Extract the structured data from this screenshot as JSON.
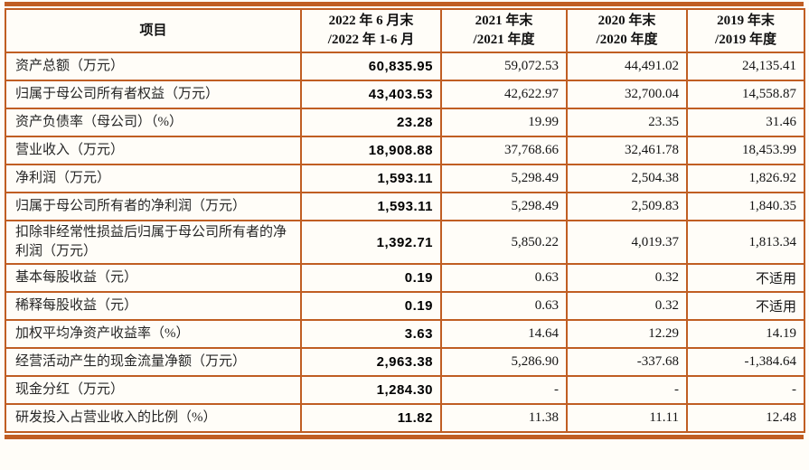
{
  "table": {
    "title_semantic": "key-financial-indicators-table",
    "colors": {
      "border": "#c05e23",
      "background": "#fffdf8",
      "text": "#141414"
    },
    "header": {
      "item_label": "项目",
      "columns": [
        "2022 年 6 月末\n/2022 年 1-6 月",
        "2021 年末\n/2021 年度",
        "2020 年末\n/2020 年度",
        "2019 年末\n/2019 年度"
      ]
    },
    "rows": [
      {
        "label": "资产总额（万元）",
        "values": [
          "60,835.95",
          "59,072.53",
          "44,491.02",
          "24,135.41"
        ]
      },
      {
        "label": "归属于母公司所有者权益（万元）",
        "values": [
          "43,403.53",
          "42,622.97",
          "32,700.04",
          "14,558.87"
        ]
      },
      {
        "label": "资产负债率（母公司）（%）",
        "values": [
          "23.28",
          "19.99",
          "23.35",
          "31.46"
        ]
      },
      {
        "label": "营业收入（万元）",
        "values": [
          "18,908.88",
          "37,768.66",
          "32,461.78",
          "18,453.99"
        ]
      },
      {
        "label": "净利润（万元）",
        "values": [
          "1,593.11",
          "5,298.49",
          "2,504.38",
          "1,826.92"
        ]
      },
      {
        "label": "归属于母公司所有者的净利润（万元）",
        "values": [
          "1,593.11",
          "5,298.49",
          "2,509.83",
          "1,840.35"
        ]
      },
      {
        "label": "扣除非经常性损益后归属于母公司所有者的净利润（万元）",
        "values": [
          "1,392.71",
          "5,850.22",
          "4,019.37",
          "1,813.34"
        ]
      },
      {
        "label": "基本每股收益（元）",
        "values": [
          "0.19",
          "0.63",
          "0.32",
          "不适用"
        ]
      },
      {
        "label": "稀释每股收益（元）",
        "values": [
          "0.19",
          "0.63",
          "0.32",
          "不适用"
        ]
      },
      {
        "label": "加权平均净资产收益率（%）",
        "values": [
          "3.63",
          "14.64",
          "12.29",
          "14.19"
        ]
      },
      {
        "label": "经营活动产生的现金流量净额（万元）",
        "values": [
          "2,963.38",
          "5,286.90",
          "-337.68",
          "-1,384.64"
        ]
      },
      {
        "label": "现金分红（万元）",
        "values": [
          "1,284.30",
          "-",
          "-",
          "-"
        ]
      },
      {
        "label": "研发投入占营业收入的比例（%）",
        "values": [
          "11.82",
          "11.38",
          "11.11",
          "12.48"
        ]
      }
    ]
  }
}
